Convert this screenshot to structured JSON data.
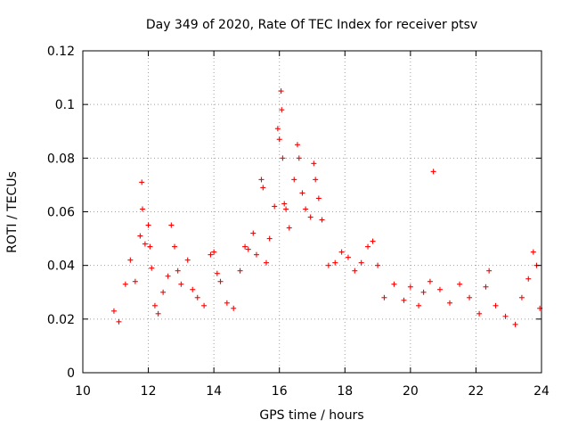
{
  "chart_data": {
    "type": "scatter",
    "title": "Day 349 of 2020, Rate Of TEC Index for receiver ptsv",
    "xlabel": "GPS time / hours",
    "ylabel": "ROTI / TECUs",
    "xlim": [
      10,
      24
    ],
    "ylim": [
      0,
      0.12
    ],
    "xticks": [
      10,
      12,
      14,
      16,
      18,
      20,
      22,
      24
    ],
    "xtick_labels": [
      "10",
      "12",
      "14",
      "16",
      "18",
      "20",
      "22",
      "24"
    ],
    "yticks": [
      0,
      0.02,
      0.04,
      0.06,
      0.08,
      0.1,
      0.12
    ],
    "ytick_labels": [
      "0",
      "0.02",
      "0.04",
      "0.06",
      "0.08",
      "0.1",
      "0.12"
    ],
    "grid": true,
    "marker": "plus",
    "color": "#ff0000",
    "series": [
      {
        "points": [
          [
            10.95,
            0.023
          ],
          [
            11.1,
            0.019
          ],
          [
            11.3,
            0.033
          ],
          [
            11.45,
            0.042
          ],
          [
            11.6,
            0.034
          ],
          [
            11.75,
            0.051
          ],
          [
            11.8,
            0.071
          ],
          [
            11.82,
            0.061
          ],
          [
            11.9,
            0.048
          ],
          [
            12.0,
            0.055
          ],
          [
            12.05,
            0.047
          ],
          [
            12.1,
            0.039
          ],
          [
            12.2,
            0.025
          ],
          [
            12.3,
            0.022
          ],
          [
            12.45,
            0.03
          ],
          [
            12.6,
            0.036
          ],
          [
            12.7,
            0.055
          ],
          [
            12.8,
            0.047
          ],
          [
            12.9,
            0.038
          ],
          [
            13.0,
            0.033
          ],
          [
            13.2,
            0.042
          ],
          [
            13.35,
            0.031
          ],
          [
            13.5,
            0.028
          ],
          [
            13.7,
            0.025
          ],
          [
            13.9,
            0.044
          ],
          [
            14.0,
            0.045
          ],
          [
            14.1,
            0.037
          ],
          [
            14.2,
            0.034
          ],
          [
            14.4,
            0.026
          ],
          [
            14.6,
            0.024
          ],
          [
            14.8,
            0.038
          ],
          [
            14.95,
            0.047
          ],
          [
            15.05,
            0.046
          ],
          [
            15.2,
            0.052
          ],
          [
            15.3,
            0.044
          ],
          [
            15.45,
            0.072
          ],
          [
            15.5,
            0.069
          ],
          [
            15.6,
            0.041
          ],
          [
            15.7,
            0.05
          ],
          [
            15.85,
            0.062
          ],
          [
            15.95,
            0.091
          ],
          [
            16.0,
            0.087
          ],
          [
            16.05,
            0.105
          ],
          [
            16.07,
            0.098
          ],
          [
            16.1,
            0.08
          ],
          [
            16.15,
            0.063
          ],
          [
            16.2,
            0.061
          ],
          [
            16.3,
            0.054
          ],
          [
            16.45,
            0.072
          ],
          [
            16.55,
            0.085
          ],
          [
            16.6,
            0.08
          ],
          [
            16.7,
            0.067
          ],
          [
            16.8,
            0.061
          ],
          [
            16.95,
            0.058
          ],
          [
            17.05,
            0.078
          ],
          [
            17.1,
            0.072
          ],
          [
            17.2,
            0.065
          ],
          [
            17.3,
            0.057
          ],
          [
            17.5,
            0.04
          ],
          [
            17.7,
            0.041
          ],
          [
            17.9,
            0.045
          ],
          [
            18.1,
            0.043
          ],
          [
            18.3,
            0.038
          ],
          [
            18.5,
            0.041
          ],
          [
            18.7,
            0.047
          ],
          [
            18.85,
            0.049
          ],
          [
            19.0,
            0.04
          ],
          [
            19.2,
            0.028
          ],
          [
            19.5,
            0.033
          ],
          [
            19.8,
            0.027
          ],
          [
            20.0,
            0.032
          ],
          [
            20.25,
            0.025
          ],
          [
            20.4,
            0.03
          ],
          [
            20.6,
            0.034
          ],
          [
            20.7,
            0.075
          ],
          [
            20.9,
            0.031
          ],
          [
            21.2,
            0.026
          ],
          [
            21.5,
            0.033
          ],
          [
            21.8,
            0.028
          ],
          [
            22.1,
            0.022
          ],
          [
            22.3,
            0.032
          ],
          [
            22.4,
            0.038
          ],
          [
            22.6,
            0.025
          ],
          [
            22.9,
            0.021
          ],
          [
            23.2,
            0.018
          ],
          [
            23.4,
            0.028
          ],
          [
            23.6,
            0.035
          ],
          [
            23.75,
            0.045
          ],
          [
            23.85,
            0.04
          ],
          [
            23.95,
            0.024
          ]
        ]
      }
    ]
  }
}
